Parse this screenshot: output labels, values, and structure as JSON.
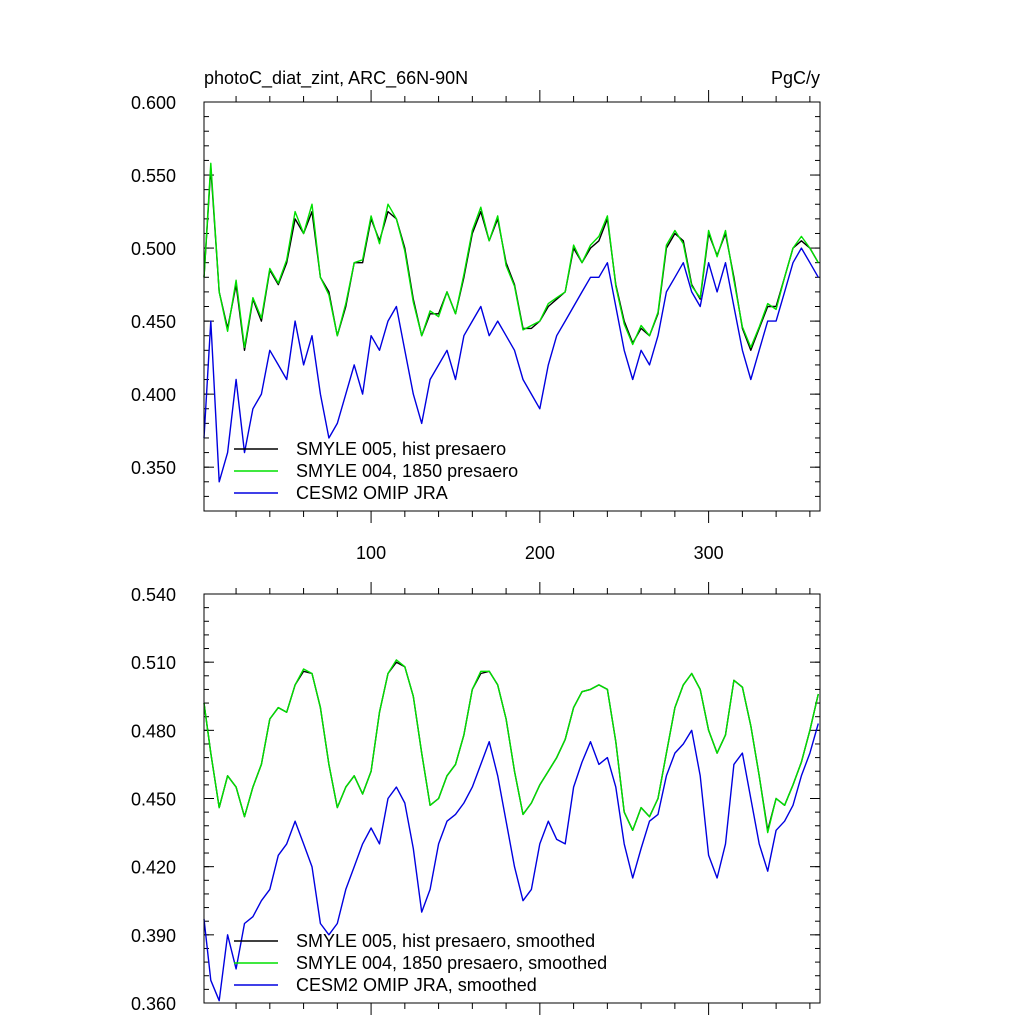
{
  "colors": {
    "hist": "#000000",
    "presaero1850": "#00e000",
    "omip": "#0000e0"
  },
  "chart_data": [
    {
      "type": "line",
      "title_left": "photoC_diat_zint, ARC_66N-90N",
      "title_right": "PgC/y",
      "xlabel": "",
      "ylabel": "",
      "xlim": [
        1,
        366
      ],
      "ylim": [
        0.32,
        0.6
      ],
      "x_ticks": [
        100,
        200,
        300
      ],
      "y_ticks": [
        "0.600",
        "0.550",
        "0.500",
        "0.450",
        "0.400",
        "0.350"
      ],
      "y_tick_values": [
        0.6,
        0.55,
        0.5,
        0.45,
        0.4,
        0.35
      ],
      "legend_position": "bottom-left",
      "series": [
        {
          "name": "SMYLE 005, hist presaero",
          "color_key": "hist",
          "x": [
            1,
            5,
            10,
            15,
            20,
            25,
            30,
            35,
            40,
            45,
            50,
            55,
            60,
            65,
            70,
            75,
            80,
            85,
            90,
            95,
            100,
            105,
            110,
            115,
            120,
            125,
            130,
            135,
            140,
            145,
            150,
            155,
            160,
            165,
            170,
            175,
            180,
            185,
            190,
            195,
            200,
            205,
            210,
            215,
            220,
            225,
            230,
            235,
            240,
            245,
            250,
            255,
            260,
            265,
            270,
            275,
            280,
            285,
            290,
            295,
            300,
            305,
            310,
            315,
            320,
            325,
            330,
            335,
            340,
            345,
            350,
            355,
            360,
            365
          ],
          "y": [
            0.48,
            0.555,
            0.47,
            0.445,
            0.475,
            0.43,
            0.465,
            0.45,
            0.485,
            0.475,
            0.49,
            0.52,
            0.51,
            0.525,
            0.48,
            0.47,
            0.44,
            0.46,
            0.49,
            0.49,
            0.52,
            0.505,
            0.525,
            0.52,
            0.5,
            0.465,
            0.44,
            0.455,
            0.455,
            0.47,
            0.455,
            0.48,
            0.51,
            0.525,
            0.505,
            0.52,
            0.49,
            0.475,
            0.445,
            0.445,
            0.45,
            0.46,
            0.465,
            0.47,
            0.5,
            0.49,
            0.5,
            0.505,
            0.52,
            0.475,
            0.45,
            0.435,
            0.445,
            0.44,
            0.455,
            0.5,
            0.51,
            0.505,
            0.475,
            0.465,
            0.51,
            0.495,
            0.51,
            0.48,
            0.445,
            0.43,
            0.445,
            0.46,
            0.46,
            0.48,
            0.5,
            0.505,
            0.5,
            0.49
          ]
        },
        {
          "name": "SMYLE 004, 1850 presaero",
          "color_key": "presaero1850",
          "x": [
            1,
            5,
            10,
            15,
            20,
            25,
            30,
            35,
            40,
            45,
            50,
            55,
            60,
            65,
            70,
            75,
            80,
            85,
            90,
            95,
            100,
            105,
            110,
            115,
            120,
            125,
            130,
            135,
            140,
            145,
            150,
            155,
            160,
            165,
            170,
            175,
            180,
            185,
            190,
            195,
            200,
            205,
            210,
            215,
            220,
            225,
            230,
            235,
            240,
            245,
            250,
            255,
            260,
            265,
            270,
            275,
            280,
            285,
            290,
            295,
            300,
            305,
            310,
            315,
            320,
            325,
            330,
            335,
            340,
            345,
            350,
            355,
            360,
            365
          ],
          "y": [
            0.48,
            0.558,
            0.47,
            0.443,
            0.478,
            0.432,
            0.466,
            0.452,
            0.486,
            0.476,
            0.492,
            0.525,
            0.51,
            0.53,
            0.48,
            0.468,
            0.44,
            0.462,
            0.49,
            0.492,
            0.522,
            0.503,
            0.53,
            0.52,
            0.498,
            0.463,
            0.44,
            0.457,
            0.453,
            0.47,
            0.455,
            0.482,
            0.512,
            0.528,
            0.505,
            0.522,
            0.488,
            0.474,
            0.444,
            0.447,
            0.45,
            0.462,
            0.466,
            0.47,
            0.502,
            0.49,
            0.502,
            0.508,
            0.522,
            0.474,
            0.448,
            0.434,
            0.447,
            0.44,
            0.456,
            0.502,
            0.512,
            0.503,
            0.474,
            0.466,
            0.512,
            0.494,
            0.512,
            0.478,
            0.446,
            0.432,
            0.446,
            0.462,
            0.458,
            0.48,
            0.5,
            0.508,
            0.5,
            0.49
          ]
        },
        {
          "name": "CESM2 OMIP JRA",
          "color_key": "omip",
          "x": [
            1,
            5,
            10,
            15,
            20,
            25,
            30,
            35,
            40,
            45,
            50,
            55,
            60,
            65,
            70,
            75,
            80,
            85,
            90,
            95,
            100,
            105,
            110,
            115,
            120,
            125,
            130,
            135,
            140,
            145,
            150,
            155,
            160,
            165,
            170,
            175,
            180,
            185,
            190,
            195,
            200,
            205,
            210,
            215,
            220,
            225,
            230,
            235,
            240,
            245,
            250,
            255,
            260,
            265,
            270,
            275,
            280,
            285,
            290,
            295,
            300,
            305,
            310,
            315,
            320,
            325,
            330,
            335,
            340,
            345,
            350,
            355,
            360,
            365
          ],
          "y": [
            0.37,
            0.45,
            0.34,
            0.36,
            0.41,
            0.36,
            0.39,
            0.4,
            0.43,
            0.42,
            0.41,
            0.45,
            0.42,
            0.44,
            0.4,
            0.37,
            0.38,
            0.4,
            0.42,
            0.4,
            0.44,
            0.43,
            0.45,
            0.46,
            0.43,
            0.4,
            0.38,
            0.41,
            0.42,
            0.43,
            0.41,
            0.44,
            0.45,
            0.46,
            0.44,
            0.45,
            0.44,
            0.43,
            0.41,
            0.4,
            0.39,
            0.42,
            0.44,
            0.45,
            0.46,
            0.47,
            0.48,
            0.48,
            0.49,
            0.46,
            0.43,
            0.41,
            0.43,
            0.42,
            0.44,
            0.47,
            0.48,
            0.49,
            0.47,
            0.46,
            0.49,
            0.47,
            0.49,
            0.46,
            0.43,
            0.41,
            0.43,
            0.45,
            0.45,
            0.47,
            0.49,
            0.5,
            0.49,
            0.48
          ]
        }
      ]
    },
    {
      "type": "line",
      "xlabel": "",
      "ylabel": "",
      "xlim": [
        1,
        366
      ],
      "ylim": [
        0.36,
        0.54
      ],
      "x_ticks": [
        100,
        200,
        300
      ],
      "y_ticks": [
        "0.540",
        "0.510",
        "0.480",
        "0.450",
        "0.420",
        "0.390",
        "0.360"
      ],
      "y_tick_values": [
        0.54,
        0.51,
        0.48,
        0.45,
        0.42,
        0.39,
        0.36
      ],
      "legend_position": "bottom-left",
      "series": [
        {
          "name": "SMYLE 005, hist presaero, smoothed",
          "color_key": "hist",
          "x": [
            1,
            5,
            10,
            15,
            20,
            25,
            30,
            35,
            40,
            45,
            50,
            55,
            60,
            65,
            70,
            75,
            80,
            85,
            90,
            95,
            100,
            105,
            110,
            115,
            120,
            125,
            130,
            135,
            140,
            145,
            150,
            155,
            160,
            165,
            170,
            175,
            180,
            185,
            190,
            195,
            200,
            205,
            210,
            215,
            220,
            225,
            230,
            235,
            240,
            245,
            250,
            255,
            260,
            265,
            270,
            275,
            280,
            285,
            290,
            295,
            300,
            305,
            310,
            315,
            320,
            325,
            330,
            335,
            340,
            345,
            350,
            355,
            360,
            365
          ],
          "y": [
            0.492,
            0.47,
            0.446,
            0.46,
            0.455,
            0.442,
            0.455,
            0.465,
            0.485,
            0.49,
            0.488,
            0.5,
            0.506,
            0.505,
            0.49,
            0.465,
            0.446,
            0.455,
            0.46,
            0.452,
            0.462,
            0.488,
            0.505,
            0.51,
            0.508,
            0.495,
            0.47,
            0.447,
            0.45,
            0.46,
            0.465,
            0.478,
            0.498,
            0.505,
            0.506,
            0.5,
            0.485,
            0.462,
            0.443,
            0.448,
            0.456,
            0.462,
            0.468,
            0.476,
            0.49,
            0.497,
            0.498,
            0.5,
            0.498,
            0.475,
            0.444,
            0.436,
            0.446,
            0.442,
            0.45,
            0.47,
            0.49,
            0.5,
            0.505,
            0.498,
            0.48,
            0.47,
            0.478,
            0.502,
            0.499,
            0.482,
            0.46,
            0.436,
            0.45,
            0.447,
            0.456,
            0.466,
            0.48,
            0.496
          ]
        },
        {
          "name": "SMYLE 004, 1850 presaero, smoothed",
          "color_key": "presaero1850",
          "x": [
            1,
            5,
            10,
            15,
            20,
            25,
            30,
            35,
            40,
            45,
            50,
            55,
            60,
            65,
            70,
            75,
            80,
            85,
            90,
            95,
            100,
            105,
            110,
            115,
            120,
            125,
            130,
            135,
            140,
            145,
            150,
            155,
            160,
            165,
            170,
            175,
            180,
            185,
            190,
            195,
            200,
            205,
            210,
            215,
            220,
            225,
            230,
            235,
            240,
            245,
            250,
            255,
            260,
            265,
            270,
            275,
            280,
            285,
            290,
            295,
            300,
            305,
            310,
            315,
            320,
            325,
            330,
            335,
            340,
            345,
            350,
            355,
            360,
            365
          ],
          "y": [
            0.492,
            0.47,
            0.446,
            0.46,
            0.455,
            0.442,
            0.455,
            0.465,
            0.485,
            0.49,
            0.488,
            0.5,
            0.507,
            0.505,
            0.49,
            0.465,
            0.446,
            0.455,
            0.46,
            0.452,
            0.462,
            0.488,
            0.505,
            0.511,
            0.508,
            0.495,
            0.47,
            0.447,
            0.45,
            0.46,
            0.465,
            0.478,
            0.498,
            0.506,
            0.506,
            0.5,
            0.485,
            0.462,
            0.443,
            0.448,
            0.456,
            0.462,
            0.468,
            0.476,
            0.49,
            0.497,
            0.498,
            0.5,
            0.498,
            0.475,
            0.444,
            0.436,
            0.446,
            0.442,
            0.45,
            0.47,
            0.49,
            0.5,
            0.505,
            0.498,
            0.48,
            0.47,
            0.478,
            0.502,
            0.499,
            0.482,
            0.46,
            0.435,
            0.45,
            0.447,
            0.456,
            0.466,
            0.48,
            0.496
          ]
        },
        {
          "name": "CESM2 OMIP JRA, smoothed",
          "color_key": "omip",
          "x": [
            1,
            5,
            10,
            15,
            20,
            25,
            30,
            35,
            40,
            45,
            50,
            55,
            60,
            65,
            70,
            75,
            80,
            85,
            90,
            95,
            100,
            105,
            110,
            115,
            120,
            125,
            130,
            135,
            140,
            145,
            150,
            155,
            160,
            165,
            170,
            175,
            180,
            185,
            190,
            195,
            200,
            205,
            210,
            215,
            220,
            225,
            230,
            235,
            240,
            245,
            250,
            255,
            260,
            265,
            270,
            275,
            280,
            285,
            290,
            295,
            300,
            305,
            310,
            315,
            320,
            325,
            330,
            335,
            340,
            345,
            350,
            355,
            360,
            365
          ],
          "y": [
            0.397,
            0.37,
            0.361,
            0.39,
            0.375,
            0.395,
            0.398,
            0.405,
            0.41,
            0.425,
            0.43,
            0.44,
            0.43,
            0.42,
            0.395,
            0.39,
            0.395,
            0.41,
            0.42,
            0.43,
            0.437,
            0.43,
            0.45,
            0.455,
            0.448,
            0.428,
            0.4,
            0.41,
            0.43,
            0.44,
            0.443,
            0.448,
            0.455,
            0.465,
            0.475,
            0.46,
            0.44,
            0.42,
            0.405,
            0.41,
            0.43,
            0.44,
            0.432,
            0.43,
            0.455,
            0.466,
            0.475,
            0.465,
            0.468,
            0.455,
            0.43,
            0.415,
            0.428,
            0.44,
            0.443,
            0.46,
            0.47,
            0.474,
            0.48,
            0.46,
            0.425,
            0.415,
            0.43,
            0.465,
            0.47,
            0.45,
            0.43,
            0.418,
            0.436,
            0.44,
            0.447,
            0.46,
            0.47,
            0.483
          ]
        }
      ]
    }
  ]
}
